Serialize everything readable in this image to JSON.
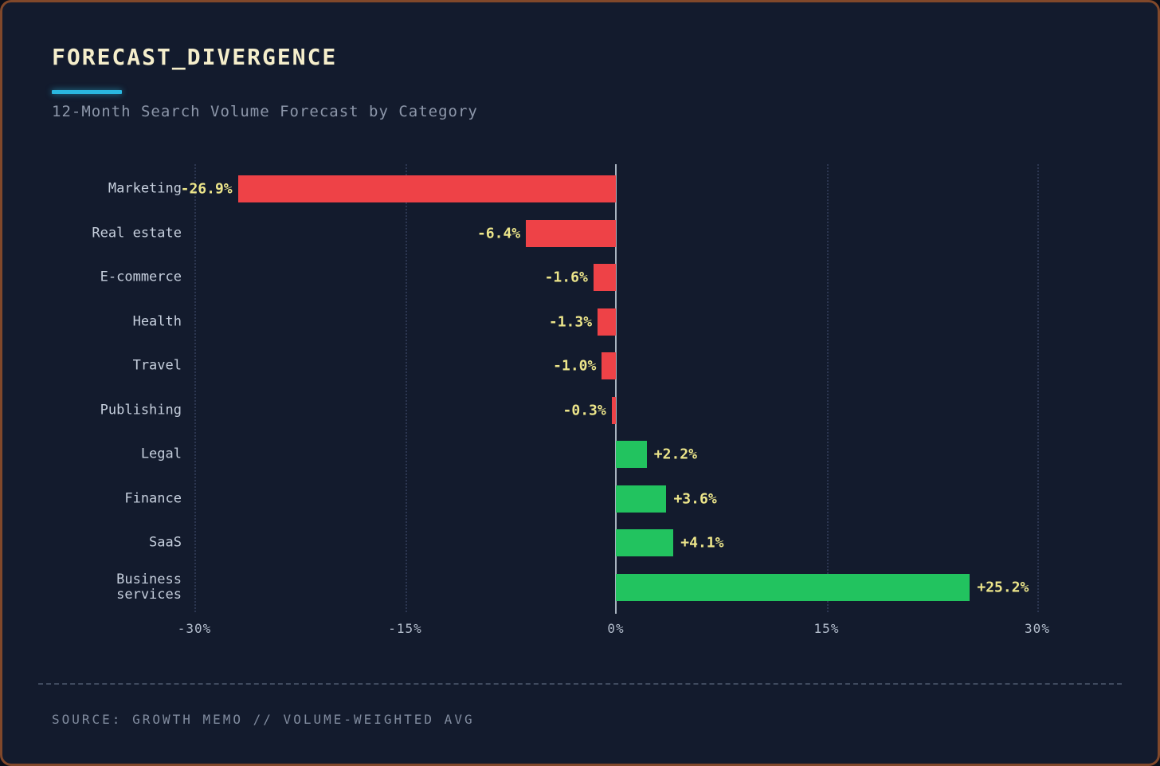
{
  "header": {
    "title": "FORECAST_DIVERGENCE",
    "subtitle": "12-Month Search Volume Forecast by Category"
  },
  "footer": {
    "source": "SOURCE: GROWTH MEMO // VOLUME-WEIGHTED AVG"
  },
  "colors": {
    "background": "#131b2d",
    "border": "#81482a",
    "accent": "#2ab8e0",
    "title": "#f5eecb",
    "subtitle": "#8d97aa",
    "category_label": "#c6cfdd",
    "value_label": "#ece58a",
    "tick_label": "#b3bdcc",
    "footer_text": "#808b9e",
    "positive": "#22c35f",
    "negative": "#ee4247",
    "gridline": "#2c3650",
    "zero_line": "#a9b4c0",
    "divider": "#3f4a5e"
  },
  "chart_data": {
    "type": "bar",
    "orientation": "horizontal",
    "title": "FORECAST_DIVERGENCE",
    "subtitle": "12-Month Search Volume Forecast by Category",
    "categories": [
      "Marketing",
      "Real estate",
      "E-commerce",
      "Health",
      "Travel",
      "Publishing",
      "Legal",
      "Finance",
      "SaaS",
      "Business services"
    ],
    "values": [
      -26.9,
      -6.4,
      -1.6,
      -1.3,
      -1.0,
      -0.3,
      2.2,
      3.6,
      4.1,
      25.2
    ],
    "value_labels": [
      "-26.9%",
      "-6.4%",
      "-1.6%",
      "-1.3%",
      "-1.0%",
      "-0.3%",
      "+2.2%",
      "+3.6%",
      "+4.1%",
      "+25.2%"
    ],
    "xlim": [
      -30,
      30
    ],
    "x_ticks": [
      -30,
      -15,
      0,
      15,
      30
    ],
    "x_tick_labels": [
      "-30%",
      "-15%",
      "0%",
      "15%",
      "30%"
    ],
    "grid": "dotted-vertical",
    "legend": "none",
    "xlabel": "",
    "ylabel": ""
  }
}
